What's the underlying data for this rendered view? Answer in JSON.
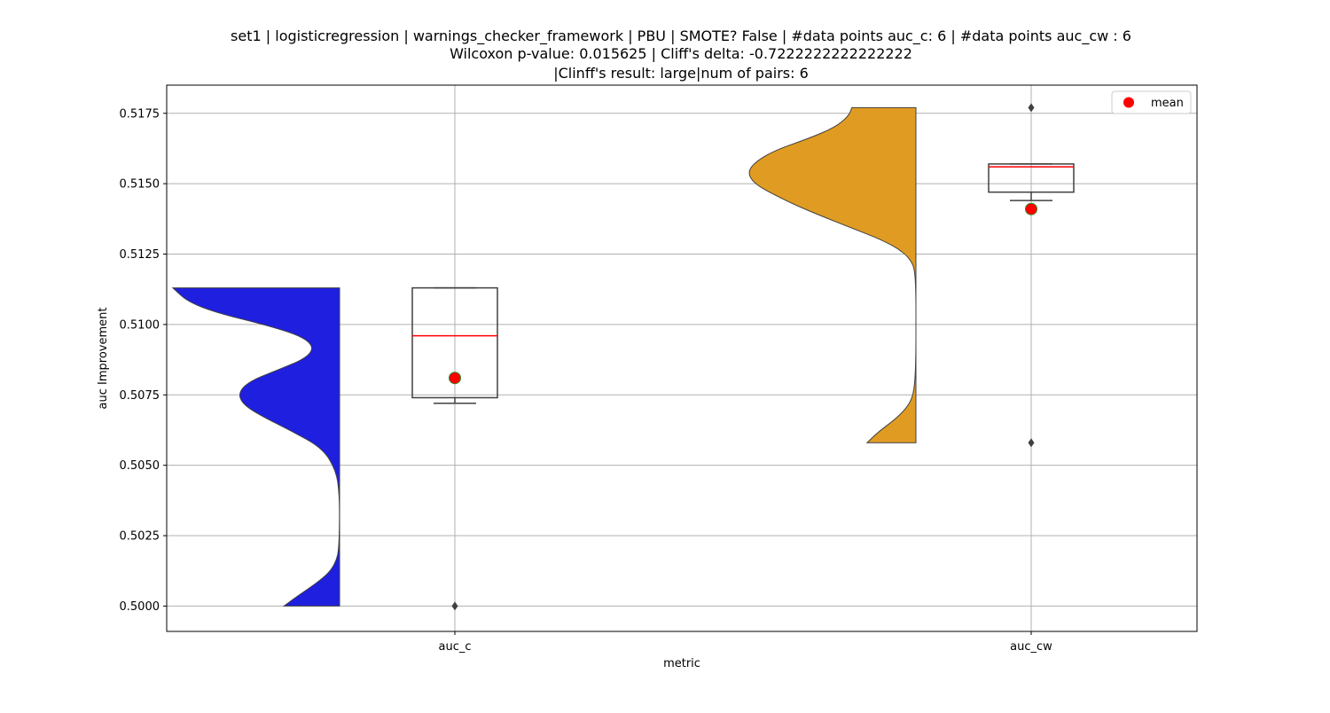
{
  "chart_data": {
    "type": "violin",
    "title_lines": [
      "set1 | logisticregression | warnings_checker_framework | PBU | SMOTE? False | #data points auc_c: 6 | #data points auc_cw : 6",
      "Wilcoxon p-value: 0.015625 | Cliff's delta: -0.7222222222222222",
      "|Clinff's result: large|num of pairs: 6"
    ],
    "xlabel": "metric",
    "ylabel": "auc Improvement",
    "categories": [
      "auc_c",
      "auc_cw"
    ],
    "ylim": [
      0.4991,
      0.5185
    ],
    "yticks": [
      0.5,
      0.5025,
      0.505,
      0.5075,
      0.51,
      0.5125,
      0.515,
      0.5175
    ],
    "ytick_labels": [
      "0.5000",
      "0.5025",
      "0.5050",
      "0.5075",
      "0.5100",
      "0.5125",
      "0.5150",
      "0.5175"
    ],
    "grid": true,
    "legend": {
      "position": "top-right",
      "entries": [
        {
          "label": "mean",
          "marker": "circle",
          "color": "#ff0000"
        }
      ]
    },
    "series": [
      {
        "category": "auc_c",
        "violin_color": "#1f1fe0",
        "violin_side": "left",
        "violin_range": [
          0.5,
          0.5113
        ],
        "density": [
          [
            0.5,
            0.33
          ],
          [
            0.5004,
            0.24
          ],
          [
            0.5008,
            0.14
          ],
          [
            0.5012,
            0.06
          ],
          [
            0.5016,
            0.02
          ],
          [
            0.502,
            0.005
          ],
          [
            0.503,
            0.0
          ],
          [
            0.504,
            0.002
          ],
          [
            0.5048,
            0.02
          ],
          [
            0.5056,
            0.1
          ],
          [
            0.5062,
            0.28
          ],
          [
            0.5068,
            0.48
          ],
          [
            0.5072,
            0.58
          ],
          [
            0.5076,
            0.6
          ],
          [
            0.508,
            0.53
          ],
          [
            0.5084,
            0.36
          ],
          [
            0.5088,
            0.2
          ],
          [
            0.5092,
            0.15
          ],
          [
            0.5096,
            0.23
          ],
          [
            0.51,
            0.45
          ],
          [
            0.5104,
            0.72
          ],
          [
            0.5108,
            0.9
          ],
          [
            0.5113,
            0.99
          ]
        ],
        "box": {
          "whisker_low": 0.5072,
          "q1": 0.5074,
          "median": 0.5096,
          "q3": 0.5113,
          "whisker_high": 0.5113
        },
        "mean": 0.5081,
        "outliers": [
          0.5
        ]
      },
      {
        "category": "auc_cw",
        "violin_color": "#e09c22",
        "violin_side": "left",
        "violin_range": [
          0.5058,
          0.5177
        ],
        "density": [
          [
            0.5058,
            0.29
          ],
          [
            0.5062,
            0.22
          ],
          [
            0.5066,
            0.13
          ],
          [
            0.507,
            0.06
          ],
          [
            0.5074,
            0.02
          ],
          [
            0.508,
            0.005
          ],
          [
            0.509,
            0.0
          ],
          [
            0.51,
            0.0
          ],
          [
            0.511,
            0.0
          ],
          [
            0.5118,
            0.005
          ],
          [
            0.5122,
            0.02
          ],
          [
            0.5126,
            0.08
          ],
          [
            0.513,
            0.2
          ],
          [
            0.5134,
            0.37
          ],
          [
            0.5138,
            0.54
          ],
          [
            0.5142,
            0.7
          ],
          [
            0.5146,
            0.84
          ],
          [
            0.515,
            0.96
          ],
          [
            0.5154,
            1.0
          ],
          [
            0.5158,
            0.95
          ],
          [
            0.5162,
            0.83
          ],
          [
            0.5166,
            0.64
          ],
          [
            0.517,
            0.48
          ],
          [
            0.5174,
            0.4
          ],
          [
            0.5177,
            0.38
          ]
        ],
        "box": {
          "whisker_low": 0.5144,
          "q1": 0.5147,
          "median": 0.5156,
          "q3": 0.5157,
          "whisker_high": 0.5157
        },
        "mean": 0.5141,
        "outliers": [
          0.5058,
          0.5177
        ]
      }
    ]
  }
}
